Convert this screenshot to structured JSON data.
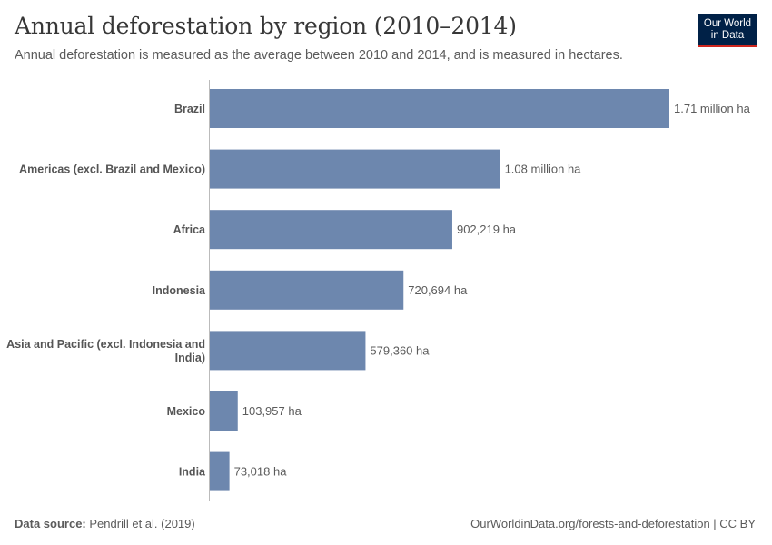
{
  "header": {
    "title": "Annual deforestation by region (2010–2014)",
    "subtitle": "Annual deforestation is measured as the average between 2010 and 2014, and is measured in hectares.",
    "logo_line1": "Our World",
    "logo_line2": "in Data"
  },
  "footer": {
    "source_label": "Data source:",
    "source_text": "Pendrill et al. (2019)",
    "url_text": "OurWorldinData.org/forests-and-deforestation | CC BY"
  },
  "colors": {
    "bar": "#6d87ae",
    "logo_bg": "#002147",
    "logo_accent": "#ce261e"
  },
  "chart_data": {
    "type": "bar",
    "orientation": "horizontal",
    "unit": "ha",
    "categories": [
      "Brazil",
      "Americas (excl. Brazil and Mexico)",
      "Africa",
      "Indonesia",
      "Asia and Pacific (excl. Indonesia and India)",
      "Mexico",
      "India"
    ],
    "category_lines": [
      [
        "Brazil"
      ],
      [
        "Americas (excl. Brazil and Mexico)"
      ],
      [
        "Africa"
      ],
      [
        "Indonesia"
      ],
      [
        "Asia and Pacific (excl. Indonesia and",
        "India)"
      ],
      [
        "Mexico"
      ],
      [
        "India"
      ]
    ],
    "values": [
      1710000,
      1080000,
      902219,
      720694,
      579360,
      103957,
      73018
    ],
    "value_labels": [
      "1.71 million ha",
      "1.08 million ha",
      "902,219 ha",
      "720,694 ha",
      "579,360 ha",
      "103,957 ha",
      "73,018 ha"
    ],
    "xlim": [
      0,
      1710000
    ]
  }
}
